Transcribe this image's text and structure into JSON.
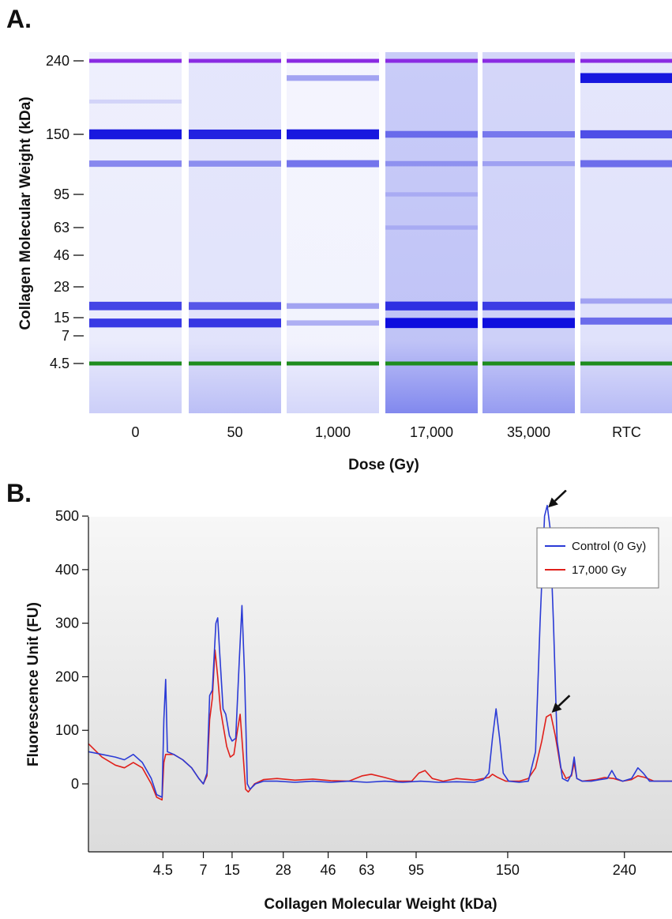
{
  "panel_a": {
    "label": "A.",
    "ylabel": "Collagen Molecular Weight (kDa)",
    "xlabel": "Dose (Gy)"
  },
  "panel_b": {
    "label": "B.",
    "ylabel": "Fluorescence Unit (FU)",
    "xlabel": "Collagen Molecular Weight (kDa)"
  },
  "chart_data": [
    {
      "type": "heatmap",
      "title": "",
      "xlabel": "Dose (Gy)",
      "ylabel": "Collagen Molecular Weight (kDa)",
      "lanes": [
        "0",
        "50",
        "1,000",
        "17,000",
        "35,000",
        "RTC"
      ],
      "y_ticks": [
        "240",
        "150",
        "95",
        "63",
        "46",
        "28",
        "15",
        "7",
        "4.5"
      ],
      "marker_bands": [
        {
          "kDa": "240",
          "color": "#8a2be2"
        },
        {
          "kDa": "4.5",
          "color": "#1e8c1e"
        }
      ],
      "background_intensity": [
        0.1,
        0.15,
        0.07,
        0.32,
        0.26,
        0.16
      ],
      "bands_kDa_intensity": [
        [
          [
            150,
            0.95
          ],
          [
            120,
            0.45
          ],
          [
            19,
            0.75
          ],
          [
            12,
            0.8
          ],
          [
            185,
            0.12
          ]
        ],
        [
          [
            150,
            0.9
          ],
          [
            120,
            0.4
          ],
          [
            19,
            0.65
          ],
          [
            12,
            0.8
          ]
        ],
        [
          [
            150,
            0.95
          ],
          [
            120,
            0.55
          ],
          [
            19,
            0.35
          ],
          [
            12,
            0.3
          ],
          [
            215,
            0.35
          ]
        ],
        [
          [
            150,
            0.5
          ],
          [
            120,
            0.3
          ],
          [
            19,
            0.8
          ],
          [
            12,
            0.98
          ],
          [
            95,
            0.15
          ],
          [
            63,
            0.15
          ]
        ],
        [
          [
            150,
            0.45
          ],
          [
            120,
            0.25
          ],
          [
            19,
            0.75
          ],
          [
            12,
            0.98
          ]
        ],
        [
          [
            215,
            0.95
          ],
          [
            150,
            0.7
          ],
          [
            120,
            0.55
          ],
          [
            21,
            0.3
          ],
          [
            13,
            0.55
          ]
        ]
      ]
    },
    {
      "type": "line",
      "title": "",
      "xlabel": "Collagen Molecular Weight (kDa)",
      "ylabel": "Fluorescence Unit (FU)",
      "x_ticks": [
        "4.5",
        "7",
        "15",
        "28",
        "46",
        "63",
        "95",
        "150",
        "240"
      ],
      "y_ticks": [
        0,
        100,
        200,
        300,
        400,
        500
      ],
      "ylim": [
        -95,
        535
      ],
      "grid": false,
      "legend": "top-right",
      "annotations": [
        "arrow at Control (0 Gy) 150 kDa peak",
        "arrow at 17,000 Gy 150 kDa peak"
      ],
      "series": [
        {
          "name": "Control (0 Gy)",
          "color": "#2b3bd6",
          "points": [
            [
              0.0,
              60
            ],
            [
              1.5,
              55
            ],
            [
              3.0,
              50
            ],
            [
              4.0,
              45
            ],
            [
              5.0,
              55
            ],
            [
              6.0,
              40
            ],
            [
              7.0,
              10
            ],
            [
              7.6,
              -20
            ],
            [
              8.2,
              -25
            ],
            [
              8.4,
              120
            ],
            [
              8.6,
              195
            ],
            [
              8.8,
              60
            ],
            [
              9.5,
              55
            ],
            [
              10.5,
              45
            ],
            [
              11.5,
              30
            ],
            [
              12.3,
              10
            ],
            [
              12.8,
              0
            ],
            [
              13.2,
              20
            ],
            [
              13.5,
              165
            ],
            [
              13.8,
              175
            ],
            [
              14.2,
              300
            ],
            [
              14.4,
              310
            ],
            [
              14.6,
              250
            ],
            [
              15.0,
              140
            ],
            [
              15.3,
              130
            ],
            [
              15.7,
              90
            ],
            [
              16.0,
              80
            ],
            [
              16.4,
              85
            ],
            [
              16.8,
              230
            ],
            [
              17.1,
              333
            ],
            [
              17.4,
              200
            ],
            [
              17.7,
              0
            ],
            [
              18.0,
              -10
            ],
            [
              18.6,
              0
            ],
            [
              19.5,
              5
            ],
            [
              21.0,
              5
            ],
            [
              23.0,
              3
            ],
            [
              25.0,
              5
            ],
            [
              27.0,
              3
            ],
            [
              29.0,
              5
            ],
            [
              31.0,
              3
            ],
            [
              33.0,
              5
            ],
            [
              35.0,
              3
            ],
            [
              37.0,
              5
            ],
            [
              39.0,
              3
            ],
            [
              41.0,
              4
            ],
            [
              43.0,
              3
            ],
            [
              44.0,
              8
            ],
            [
              44.6,
              20
            ],
            [
              45.0,
              85
            ],
            [
              45.4,
              140
            ],
            [
              45.8,
              85
            ],
            [
              46.2,
              20
            ],
            [
              46.8,
              5
            ],
            [
              48.0,
              3
            ],
            [
              49.0,
              5
            ],
            [
              49.8,
              60
            ],
            [
              50.3,
              300
            ],
            [
              50.8,
              500
            ],
            [
              51.1,
              520
            ],
            [
              51.4,
              480
            ],
            [
              51.8,
              300
            ],
            [
              52.2,
              80
            ],
            [
              52.8,
              10
            ],
            [
              53.4,
              5
            ],
            [
              53.8,
              18
            ],
            [
              54.1,
              50
            ],
            [
              54.4,
              10
            ],
            [
              55.0,
              5
            ],
            [
              56.0,
              5
            ],
            [
              57.0,
              8
            ],
            [
              57.8,
              10
            ],
            [
              58.3,
              25
            ],
            [
              58.8,
              10
            ],
            [
              59.5,
              5
            ],
            [
              60.5,
              10
            ],
            [
              61.2,
              30
            ],
            [
              61.8,
              20
            ],
            [
              62.5,
              5
            ],
            [
              63.5,
              5
            ],
            [
              65.0,
              5
            ]
          ]
        },
        {
          "name": "17,000 Gy",
          "color": "#e0201b",
          "points": [
            [
              0.0,
              75
            ],
            [
              1.5,
              50
            ],
            [
              3.0,
              35
            ],
            [
              4.0,
              30
            ],
            [
              5.0,
              40
            ],
            [
              6.0,
              30
            ],
            [
              7.0,
              0
            ],
            [
              7.6,
              -25
            ],
            [
              8.2,
              -30
            ],
            [
              8.4,
              40
            ],
            [
              8.6,
              55
            ],
            [
              9.5,
              55
            ],
            [
              10.5,
              45
            ],
            [
              11.5,
              30
            ],
            [
              12.3,
              10
            ],
            [
              12.8,
              0
            ],
            [
              13.2,
              15
            ],
            [
              13.5,
              120
            ],
            [
              13.8,
              160
            ],
            [
              14.1,
              250
            ],
            [
              14.4,
              200
            ],
            [
              14.7,
              140
            ],
            [
              15.0,
              110
            ],
            [
              15.4,
              70
            ],
            [
              15.8,
              50
            ],
            [
              16.2,
              55
            ],
            [
              16.6,
              100
            ],
            [
              16.9,
              130
            ],
            [
              17.2,
              60
            ],
            [
              17.5,
              -10
            ],
            [
              17.8,
              -15
            ],
            [
              18.5,
              0
            ],
            [
              19.5,
              8
            ],
            [
              21.0,
              10
            ],
            [
              23.0,
              7
            ],
            [
              25.0,
              9
            ],
            [
              27.0,
              6
            ],
            [
              29.0,
              5
            ],
            [
              30.5,
              15
            ],
            [
              31.5,
              18
            ],
            [
              33.0,
              12
            ],
            [
              34.5,
              5
            ],
            [
              36.0,
              5
            ],
            [
              36.8,
              20
            ],
            [
              37.5,
              25
            ],
            [
              38.3,
              10
            ],
            [
              39.5,
              5
            ],
            [
              41.0,
              10
            ],
            [
              43.0,
              7
            ],
            [
              44.0,
              10
            ],
            [
              44.6,
              12
            ],
            [
              45.0,
              18
            ],
            [
              45.6,
              12
            ],
            [
              46.5,
              5
            ],
            [
              48.0,
              5
            ],
            [
              49.0,
              10
            ],
            [
              49.8,
              30
            ],
            [
              50.5,
              80
            ],
            [
              51.0,
              125
            ],
            [
              51.5,
              130
            ],
            [
              52.0,
              90
            ],
            [
              52.6,
              30
            ],
            [
              53.2,
              10
            ],
            [
              53.8,
              15
            ],
            [
              54.1,
              40
            ],
            [
              54.4,
              10
            ],
            [
              55.0,
              5
            ],
            [
              56.5,
              8
            ],
            [
              57.5,
              12
            ],
            [
              58.5,
              10
            ],
            [
              59.5,
              5
            ],
            [
              60.5,
              8
            ],
            [
              61.2,
              15
            ],
            [
              62.0,
              12
            ],
            [
              63.0,
              5
            ],
            [
              65.0,
              5
            ]
          ]
        }
      ]
    }
  ]
}
